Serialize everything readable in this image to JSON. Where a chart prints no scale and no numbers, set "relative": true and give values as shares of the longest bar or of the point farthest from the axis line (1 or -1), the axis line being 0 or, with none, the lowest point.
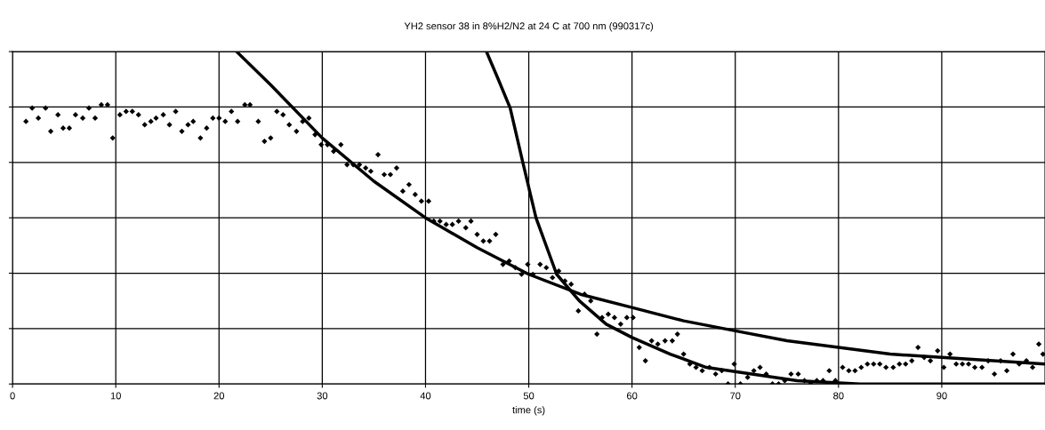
{
  "chart_data": {
    "type": "scatter",
    "title": "YH2 sensor 38 in 8%H2/N2 at 24 C at 700 nm (990317c)",
    "xlabel": "time (s)",
    "xlim": [
      0,
      100
    ],
    "xticks": [
      0,
      10,
      20,
      30,
      40,
      50,
      60,
      70,
      80,
      90
    ],
    "relative": true,
    "grid": true,
    "legend": false,
    "series": [
      {
        "color": "#000000",
        "marker": "diamond",
        "x": [
          1.3,
          1.9,
          2.5,
          3.2,
          3.7,
          4.4,
          4.9,
          5.5,
          6.1,
          6.8,
          7.4,
          8.0,
          8.6,
          9.2,
          9.7,
          10.4,
          11.0,
          11.6,
          12.2,
          12.8,
          13.4,
          13.9,
          14.6,
          15.2,
          15.8,
          16.4,
          17.0,
          17.5,
          18.2,
          18.8,
          19.4,
          20.0,
          20.6,
          21.2,
          21.8,
          22.5,
          23.0,
          23.8,
          24.4,
          25.0,
          25.6,
          26.2,
          26.8,
          27.5,
          28.1,
          28.7,
          29.3,
          29.9,
          30.5,
          31.1,
          31.8,
          32.4,
          33.0,
          33.6,
          34.2,
          34.7,
          35.4,
          36.0,
          36.6,
          37.2,
          37.8,
          38.4,
          39.0,
          39.6,
          40.3,
          40.8,
          41.4,
          42.0,
          42.6,
          43.2,
          43.9,
          44.4,
          45.0,
          45.6,
          46.2,
          46.8,
          47.5,
          48.1,
          48.7,
          49.3,
          49.9,
          50.4,
          51.1,
          51.7,
          52.3,
          52.9,
          53.5,
          54.1,
          54.8,
          55.4,
          56.0,
          56.6,
          57.1,
          57.7,
          58.3,
          58.9,
          59.5,
          60.1,
          60.7,
          61.3,
          61.9,
          62.5,
          63.2,
          63.9,
          64.4,
          65.0,
          65.6,
          66.2,
          66.8,
          67.5,
          68.1,
          68.7,
          69.3,
          69.9,
          70.5,
          71.2,
          71.8,
          72.4,
          73.0,
          73.6,
          74.2,
          74.8,
          75.4,
          76.1,
          76.7,
          77.3,
          77.9,
          78.5,
          79.1,
          79.7,
          80.4,
          81.0,
          81.6,
          82.2,
          82.8,
          83.4,
          84.0,
          84.6,
          85.3,
          85.9,
          86.5,
          87.1,
          87.7,
          88.3,
          88.9,
          89.6,
          90.2,
          90.8,
          91.4,
          92.0,
          92.6,
          93.2,
          93.9,
          94.5,
          95.1,
          95.7,
          96.3,
          96.9,
          97.5,
          98.2,
          98.8,
          99.4,
          99.8
        ],
        "values": [
          0.79,
          0.83,
          0.8,
          0.83,
          0.76,
          0.81,
          0.77,
          0.77,
          0.81,
          0.8,
          0.83,
          0.8,
          0.84,
          0.84,
          0.74,
          0.81,
          0.82,
          0.82,
          0.81,
          0.78,
          0.79,
          0.8,
          0.81,
          0.78,
          0.82,
          0.76,
          0.78,
          0.79,
          0.74,
          0.77,
          0.8,
          0.8,
          0.79,
          0.82,
          0.79,
          0.84,
          0.84,
          0.79,
          0.73,
          0.74,
          0.82,
          0.81,
          0.78,
          0.76,
          0.79,
          0.8,
          0.75,
          0.72,
          0.72,
          0.7,
          0.72,
          0.66,
          0.66,
          0.66,
          0.65,
          0.64,
          0.69,
          0.63,
          0.63,
          0.65,
          0.58,
          0.6,
          0.57,
          0.55,
          0.55,
          0.49,
          0.49,
          0.48,
          0.48,
          0.49,
          0.47,
          0.49,
          0.45,
          0.43,
          0.43,
          0.45,
          0.36,
          0.37,
          0.35,
          0.33,
          0.36,
          0.33,
          0.36,
          0.35,
          0.32,
          0.34,
          0.31,
          0.3,
          0.22,
          0.27,
          0.25,
          0.15,
          0.2,
          0.21,
          0.2,
          0.18,
          0.2,
          0.2,
          0.11,
          0.07,
          0.13,
          0.12,
          0.13,
          0.13,
          0.15,
          0.09,
          0.06,
          0.05,
          0.04,
          0.05,
          0.03,
          0.04,
          0.0,
          0.06,
          0.0,
          0.02,
          0.04,
          0.05,
          0.03,
          0.0,
          0.0,
          0.01,
          0.03,
          0.03,
          0.01,
          0.0,
          0.01,
          0.01,
          0.04,
          0.01,
          0.05,
          0.04,
          0.04,
          0.05,
          0.06,
          0.06,
          0.06,
          0.05,
          0.05,
          0.06,
          0.06,
          0.07,
          0.11,
          0.08,
          0.07,
          0.1,
          0.05,
          0.09,
          0.06,
          0.06,
          0.06,
          0.05,
          0.05,
          0.07,
          0.03,
          0.07,
          0.04,
          0.09,
          0.06,
          0.07,
          0.05,
          0.12,
          0.09
        ]
      },
      {
        "type": "line",
        "color": "#000000",
        "marker": "none",
        "line_style": "solid",
        "x": [
          21.7,
          25,
          30,
          35,
          40,
          45,
          50,
          55,
          60,
          65,
          70,
          75,
          80,
          85,
          90,
          95,
          100
        ],
        "values": [
          1.0,
          0.9,
          0.74,
          0.61,
          0.5,
          0.41,
          0.33,
          0.27,
          0.23,
          0.19,
          0.16,
          0.13,
          0.11,
          0.09,
          0.08,
          0.07,
          0.06
        ]
      },
      {
        "type": "line",
        "color": "#000000",
        "marker": "none",
        "line_style": "solid",
        "x": [
          45.9,
          47.0,
          48.2,
          49.4,
          50.7,
          52.7,
          54.9,
          57.5,
          60,
          63.7,
          67.2,
          71.6,
          76,
          82.1,
          100
        ],
        "values": [
          1.0,
          0.92,
          0.83,
          0.67,
          0.5,
          0.33,
          0.25,
          0.18,
          0.14,
          0.09,
          0.05,
          0.03,
          0.01,
          0.0,
          0.0
        ]
      }
    ]
  }
}
